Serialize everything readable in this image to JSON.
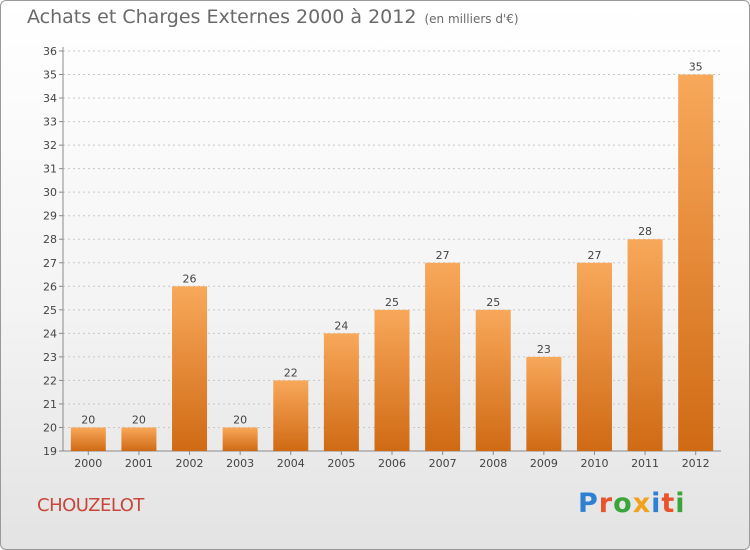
{
  "page": {
    "title": "Achats et Charges Externes 2000 à 2012",
    "subtitle": "(en milliers d'€)",
    "place_name": "CHOUZELOT",
    "logo_text": "Proxiti"
  },
  "colors": {
    "bar_light": "#f8a85a",
    "bar_dark": "#d06a14",
    "axis": "#8a8a8a",
    "grid": "#c8c8c8",
    "text": "#444444",
    "place_name": "#c9473a",
    "logo_letters": [
      "#2f7fd3",
      "#e8542e",
      "#3aa53a",
      "#f1a11a",
      "#2f7fd3",
      "#e8542e",
      "#3aa53a"
    ]
  },
  "chart_data": {
    "type": "bar",
    "title": "Achats et Charges Externes 2000 à 2012",
    "subtitle": "(en milliers d'€)",
    "categories": [
      "2000",
      "2001",
      "2002",
      "2003",
      "2004",
      "2005",
      "2006",
      "2007",
      "2008",
      "2009",
      "2010",
      "2011",
      "2012"
    ],
    "values": [
      20,
      20,
      26,
      20,
      22,
      24,
      25,
      27,
      25,
      23,
      27,
      28,
      35
    ],
    "ylim": [
      19,
      36
    ],
    "yticks": [
      19,
      20,
      21,
      22,
      23,
      24,
      25,
      26,
      27,
      28,
      29,
      30,
      31,
      32,
      33,
      34,
      35,
      36
    ],
    "grid": true,
    "data_labels": true
  }
}
